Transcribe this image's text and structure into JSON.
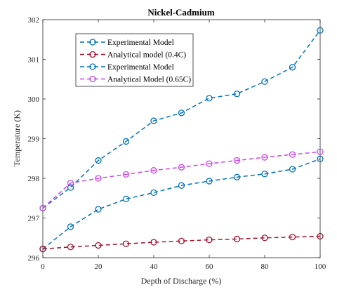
{
  "chart_data": {
    "type": "line",
    "title": "Nickel-Cadmium",
    "xlabel": "Depth of Discharge (%)",
    "ylabel": "Temperature (K)",
    "xlim": [
      0,
      100
    ],
    "ylim": [
      296,
      302
    ],
    "xticks": [
      "0",
      "20",
      "40",
      "60",
      "80",
      "100"
    ],
    "yticks": [
      "296",
      "297",
      "298",
      "299",
      "300",
      "301",
      "302"
    ],
    "grid": false,
    "legend_position": "top-left",
    "x": [
      0,
      10,
      20,
      30,
      40,
      50,
      60,
      70,
      80,
      90,
      100
    ],
    "series": [
      {
        "name": "Experimental Model",
        "color": "#0072BD",
        "values": [
          296.22,
          296.78,
          297.22,
          297.48,
          297.64,
          297.82,
          297.93,
          298.03,
          298.11,
          298.23,
          298.49
        ]
      },
      {
        "name": "Analytical model (0.4C)",
        "color": "#A2142F",
        "values": [
          296.22,
          296.27,
          296.31,
          296.35,
          296.39,
          296.42,
          296.45,
          296.47,
          296.5,
          296.52,
          296.54
        ]
      },
      {
        "name": "Experimental Model",
        "color": "#0072BD",
        "values": [
          297.25,
          297.77,
          298.45,
          298.93,
          299.45,
          299.65,
          300.02,
          300.13,
          300.44,
          300.8,
          301.73
        ]
      },
      {
        "name": "Analytical Model (0.65C)",
        "color": "#CC44EE",
        "values": [
          297.25,
          297.88,
          298.0,
          298.1,
          298.2,
          298.28,
          298.37,
          298.45,
          298.53,
          298.6,
          298.67
        ]
      }
    ]
  }
}
